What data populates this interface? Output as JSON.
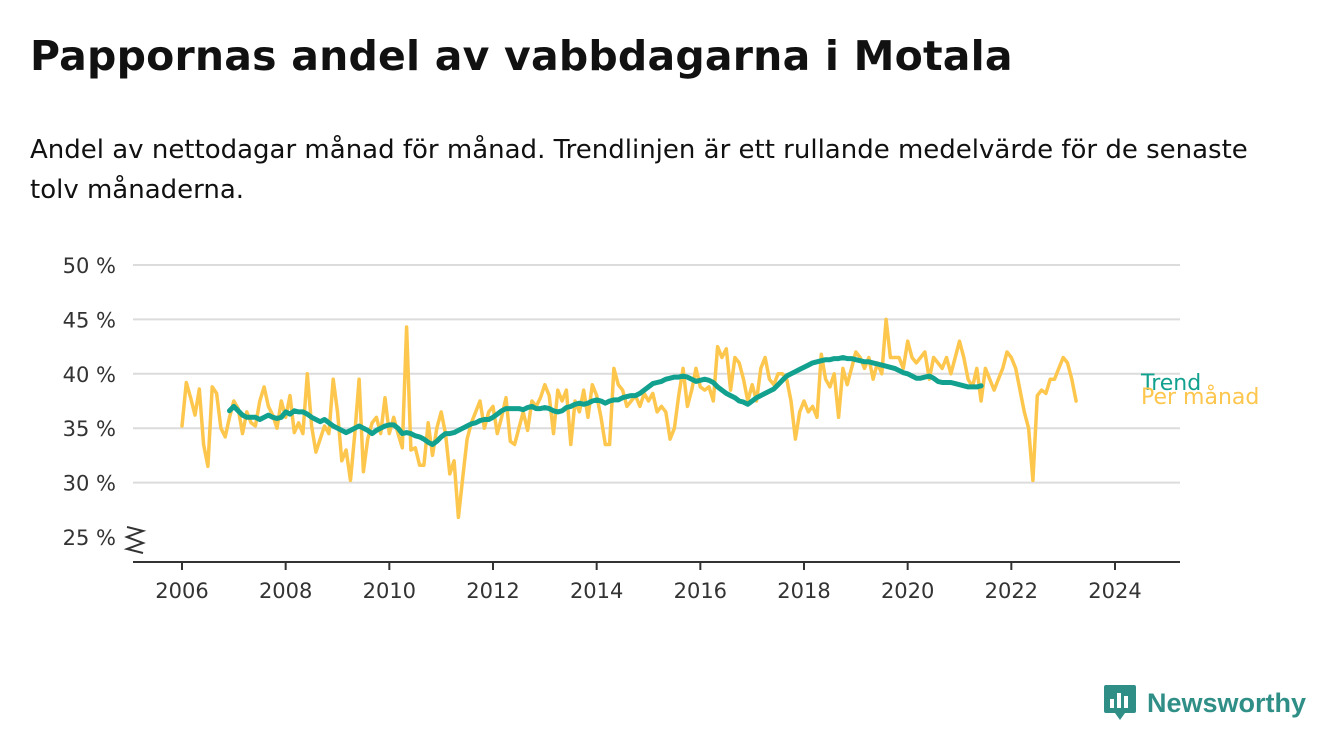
{
  "title": "Pappornas andel av vabbdagarna i Motala",
  "subtitle": "Andel av nettodagar månad för månad. Trendlinjen är ett rullande medelvärde för de senaste tolv månaderna.",
  "brand": {
    "name": "Newsworthy",
    "icon": "newsworthy-logo-icon",
    "color": "#2f8f87"
  },
  "chart_data": {
    "type": "line",
    "xlabel": "",
    "ylabel": "",
    "ylim": [
      25,
      50
    ],
    "xlim": [
      2006,
      2024.5
    ],
    "y_ticks": [
      25,
      30,
      35,
      40,
      45,
      50
    ],
    "y_tick_labels": [
      "25 %",
      "30 %",
      "35 %",
      "40 %",
      "45 %",
      "50 %"
    ],
    "x_ticks": [
      2006,
      2008,
      2010,
      2012,
      2014,
      2016,
      2018,
      2020,
      2022,
      2024
    ],
    "x_tick_labels": [
      "2006",
      "2008",
      "2010",
      "2012",
      "2014",
      "2016",
      "2018",
      "2020",
      "2022",
      "2024"
    ],
    "axis_break": true,
    "grid": true,
    "legend": "end-of-line labels",
    "series": [
      {
        "name": "Per månad",
        "color": "#fdc64d",
        "start": "2006-01",
        "values": [
          35.2,
          39.2,
          37.8,
          36.2,
          38.6,
          33.5,
          31.5,
          38.8,
          38.2,
          35.0,
          34.2,
          36.0,
          37.5,
          36.8,
          34.5,
          36.5,
          35.5,
          35.2,
          37.5,
          38.8,
          37.0,
          36.2,
          35.0,
          37.5,
          36.0,
          38.0,
          34.6,
          35.5,
          34.5,
          40.0,
          35.2,
          32.8,
          34.0,
          35.2,
          34.5,
          39.5,
          36.5,
          32.0,
          33.0,
          30.2,
          34.5,
          39.5,
          31.0,
          34.0,
          35.5,
          36.0,
          34.5,
          37.8,
          34.5,
          36.0,
          34.5,
          33.2,
          44.3,
          33.0,
          33.2,
          31.6,
          31.6,
          35.5,
          32.5,
          35.0,
          36.5,
          34.5,
          30.8,
          32.0,
          26.8,
          30.5,
          34.0,
          35.5,
          36.5,
          37.5,
          35.0,
          36.5,
          37.0,
          34.5,
          36.0,
          37.8,
          33.8,
          33.5,
          35.0,
          36.5,
          34.8,
          37.5,
          37.0,
          37.8,
          39.0,
          38.0,
          34.5,
          38.5,
          37.5,
          38.5,
          33.5,
          37.5,
          36.5,
          38.5,
          36.0,
          39.0,
          38.0,
          36.0,
          33.5,
          33.5,
          40.5,
          39.0,
          38.5,
          37.0,
          37.5,
          38.0,
          37.0,
          38.2,
          37.5,
          38.2,
          36.5,
          37.0,
          36.5,
          34.0,
          35.0,
          38.0,
          40.5,
          37.0,
          38.5,
          40.5,
          38.8,
          38.5,
          38.8,
          37.5,
          42.5,
          41.5,
          42.3,
          38.5,
          41.5,
          41.0,
          39.5,
          37.5,
          39.0,
          37.5,
          40.5,
          41.5,
          39.5,
          39.0,
          40.0,
          40.0,
          39.5,
          37.5,
          34.0,
          36.5,
          37.5,
          36.5,
          37.0,
          36.0,
          41.8,
          39.5,
          38.8,
          40.0,
          36.0,
          40.5,
          39.0,
          40.5,
          42.0,
          41.5,
          40.5,
          41.5,
          39.5,
          41.0,
          40.0,
          45.0,
          41.5,
          41.5,
          41.5,
          40.5,
          43.0,
          41.5,
          41.0,
          41.5,
          42.0,
          39.5,
          41.5,
          41.0,
          40.5,
          41.5,
          40.0,
          41.5,
          43.0,
          41.5,
          39.5,
          38.8,
          40.5,
          37.5,
          40.5,
          39.5,
          38.5,
          39.5,
          40.5,
          42.0,
          41.5,
          40.5,
          38.5,
          36.5,
          35.0,
          30.2,
          38.0,
          38.5,
          38.2,
          39.5,
          39.5,
          40.5,
          41.5,
          41.0,
          39.5,
          37.5
        ]
      },
      {
        "name": "Trend",
        "color": "#13a18f",
        "start": "2006-12",
        "values": [
          36.6,
          37.0,
          36.6,
          36.2,
          36.0,
          36.0,
          36.0,
          35.8,
          36.0,
          36.2,
          36.0,
          35.9,
          36.0,
          36.5,
          36.3,
          36.6,
          36.5,
          36.5,
          36.3,
          36.0,
          35.8,
          35.6,
          35.8,
          35.5,
          35.2,
          35.0,
          34.8,
          34.6,
          34.8,
          35.0,
          35.2,
          35.0,
          34.8,
          34.5,
          34.8,
          35.0,
          35.2,
          35.3,
          35.3,
          35.0,
          34.5,
          34.6,
          34.5,
          34.3,
          34.2,
          34.0,
          33.7,
          33.5,
          33.8,
          34.2,
          34.5,
          34.5,
          34.6,
          34.8,
          35.0,
          35.2,
          35.4,
          35.5,
          35.7,
          35.8,
          35.8,
          36.0,
          36.3,
          36.6,
          36.8,
          36.8,
          36.8,
          36.8,
          36.7,
          36.9,
          37.0,
          36.8,
          36.8,
          36.9,
          36.8,
          36.6,
          36.5,
          36.6,
          36.9,
          37.0,
          37.2,
          37.3,
          37.2,
          37.3,
          37.5,
          37.6,
          37.5,
          37.3,
          37.5,
          37.6,
          37.6,
          37.8,
          37.9,
          38.0,
          38.0,
          38.2,
          38.5,
          38.8,
          39.1,
          39.2,
          39.3,
          39.5,
          39.6,
          39.7,
          39.7,
          39.8,
          39.7,
          39.5,
          39.3,
          39.4,
          39.5,
          39.4,
          39.2,
          38.8,
          38.5,
          38.2,
          38.0,
          37.8,
          37.5,
          37.4,
          37.2,
          37.5,
          37.8,
          38.0,
          38.2,
          38.4,
          38.6,
          39.0,
          39.4,
          39.8,
          40.0,
          40.2,
          40.4,
          40.6,
          40.8,
          41.0,
          41.1,
          41.2,
          41.3,
          41.3,
          41.4,
          41.4,
          41.5,
          41.4,
          41.4,
          41.3,
          41.2,
          41.1,
          41.1,
          41.0,
          40.9,
          40.8,
          40.7,
          40.6,
          40.5,
          40.3,
          40.1,
          40.0,
          39.8,
          39.6,
          39.6,
          39.7,
          39.8,
          39.6,
          39.3,
          39.2,
          39.2,
          39.2,
          39.1,
          39.0,
          38.9,
          38.8,
          38.8,
          38.8,
          38.9
        ]
      }
    ]
  }
}
